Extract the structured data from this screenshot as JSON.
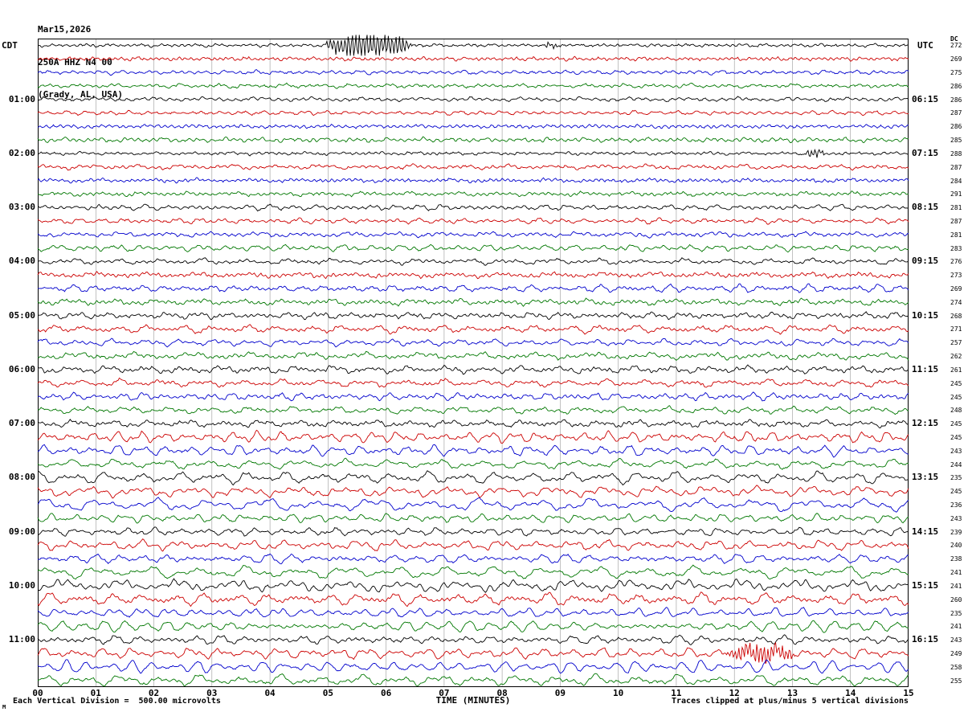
{
  "header": {
    "date": "Mar15,2026",
    "station_id": "250A HHZ N4 00",
    "location": "(Grady, AL, USA)",
    "left_timezone": "CDT",
    "right_timezone": "UTC",
    "dc_column_header": "DC"
  },
  "footer": {
    "scale_note": "Each Vertical Division =  500.00 microvolts",
    "time_axis_label": "TIME (MINUTES)",
    "clip_note": "Traces clipped at plus/minus 5 vertical divisions",
    "corner_mark": "M"
  },
  "chart_data": {
    "type": "line",
    "title": "Helicorder seismogram - station 250A HHZ N4 00 (Grady, AL, USA) - Mar15,2026",
    "xlabel": "TIME (MINUTES)",
    "x_tick_labels": [
      "00",
      "01",
      "02",
      "03",
      "04",
      "05",
      "06",
      "07",
      "08",
      "09",
      "10",
      "11",
      "12",
      "13",
      "14",
      "15"
    ],
    "x_range_minutes": [
      0,
      15
    ],
    "rows": 48,
    "minutes_per_row": 15,
    "trace_colors_cycle": [
      "#000000",
      "#cc0000",
      "#0000cc",
      "#007700"
    ],
    "grid_color": "#999999",
    "border_color": "#000000",
    "left_time_labels": [
      {
        "row": 4,
        "text": "01:00"
      },
      {
        "row": 8,
        "text": "02:00"
      },
      {
        "row": 12,
        "text": "03:00"
      },
      {
        "row": 16,
        "text": "04:00"
      },
      {
        "row": 20,
        "text": "05:00"
      },
      {
        "row": 24,
        "text": "06:00"
      },
      {
        "row": 28,
        "text": "07:00"
      },
      {
        "row": 32,
        "text": "08:00"
      },
      {
        "row": 36,
        "text": "09:00"
      },
      {
        "row": 40,
        "text": "10:00"
      },
      {
        "row": 44,
        "text": "11:00"
      }
    ],
    "right_time_labels": [
      {
        "row": 4,
        "text": "06:15"
      },
      {
        "row": 8,
        "text": "07:15"
      },
      {
        "row": 12,
        "text": "08:15"
      },
      {
        "row": 16,
        "text": "09:15"
      },
      {
        "row": 20,
        "text": "10:15"
      },
      {
        "row": 24,
        "text": "11:15"
      },
      {
        "row": 28,
        "text": "12:15"
      },
      {
        "row": 32,
        "text": "13:15"
      },
      {
        "row": 36,
        "text": "14:15"
      },
      {
        "row": 40,
        "text": "15:15"
      },
      {
        "row": 44,
        "text": "16:15"
      }
    ],
    "dc_offset_values": [
      272,
      269,
      275,
      286,
      286,
      287,
      286,
      285,
      288,
      287,
      284,
      291,
      281,
      287,
      281,
      283,
      276,
      273,
      269,
      274,
      268,
      271,
      257,
      262,
      261,
      245,
      245,
      248,
      245,
      245,
      243,
      244,
      235,
      245,
      236,
      243,
      239,
      240,
      238,
      241,
      241,
      260,
      235,
      241,
      243,
      249,
      258,
      255
    ],
    "events": [
      {
        "row": 0,
        "start_min": 4.95,
        "end_min": 6.45,
        "amplitude_divisions": 5.5,
        "description": "clipped seismic event burst on first black trace"
      },
      {
        "row": 0,
        "start_min": 8.7,
        "end_min": 9.0,
        "amplitude_divisions": 1.2,
        "description": "small aftershock bump"
      },
      {
        "row": 8,
        "start_min": 13.2,
        "end_min": 13.55,
        "amplitude_divisions": 1.6,
        "description": "small burst on 02:00 trace"
      },
      {
        "row": 45,
        "start_min": 11.85,
        "end_min": 13.05,
        "amplitude_divisions": 3.6,
        "description": "dense red burst on 11:15 trace"
      }
    ],
    "volts_per_division": "500.00 microvolts",
    "clip_divisions": 5
  }
}
